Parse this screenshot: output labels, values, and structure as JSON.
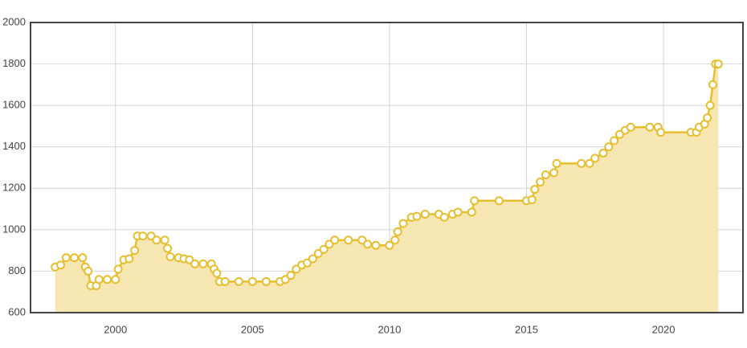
{
  "chart_data": {
    "type": "area",
    "x": [
      1997.8,
      1998.0,
      1998.2,
      1998.5,
      1998.8,
      1998.9,
      1999.0,
      1999.1,
      1999.3,
      1999.4,
      1999.7,
      2000.0,
      2000.1,
      2000.3,
      2000.5,
      2000.7,
      2000.8,
      2001.0,
      2001.3,
      2001.5,
      2001.8,
      2001.9,
      2002.0,
      2002.3,
      2002.5,
      2002.7,
      2002.9,
      2003.2,
      2003.5,
      2003.6,
      2003.7,
      2003.8,
      2004.0,
      2004.5,
      2005.0,
      2005.5,
      2006.0,
      2006.2,
      2006.4,
      2006.6,
      2006.8,
      2007.0,
      2007.2,
      2007.4,
      2007.6,
      2007.8,
      2008.0,
      2008.5,
      2009.0,
      2009.2,
      2009.5,
      2010.0,
      2010.2,
      2010.3,
      2010.5,
      2010.8,
      2011.0,
      2011.3,
      2011.8,
      2012.0,
      2012.3,
      2012.5,
      2013.0,
      2013.1,
      2014.0,
      2015.0,
      2015.2,
      2015.3,
      2015.5,
      2015.7,
      2016.0,
      2016.1,
      2017.0,
      2017.3,
      2017.5,
      2017.8,
      2018.0,
      2018.2,
      2018.4,
      2018.6,
      2018.8,
      2019.5,
      2019.8,
      2019.9,
      2021.0,
      2021.2,
      2021.3,
      2021.5,
      2021.6,
      2021.7,
      2021.8,
      2021.9,
      2022.0
    ],
    "series": [
      {
        "color": "#e6be2e",
        "fill": "#f6e6b2",
        "values": [
          820,
          830,
          865,
          865,
          865,
          820,
          800,
          730,
          730,
          760,
          760,
          760,
          810,
          855,
          860,
          900,
          970,
          970,
          970,
          950,
          950,
          910,
          870,
          865,
          860,
          855,
          835,
          835,
          835,
          810,
          790,
          750,
          750,
          750,
          750,
          750,
          750,
          760,
          780,
          810,
          830,
          840,
          860,
          885,
          905,
          930,
          950,
          950,
          950,
          930,
          925,
          925,
          950,
          990,
          1030,
          1060,
          1065,
          1075,
          1075,
          1060,
          1075,
          1085,
          1085,
          1140,
          1140,
          1140,
          1145,
          1195,
          1230,
          1265,
          1275,
          1320,
          1320,
          1320,
          1345,
          1370,
          1400,
          1430,
          1460,
          1480,
          1495,
          1495,
          1495,
          1470,
          1470,
          1470,
          1495,
          1510,
          1540,
          1600,
          1700,
          1800,
          1800
        ]
      }
    ],
    "xlim": [
      1996.9,
      2022.9
    ],
    "xticks": [
      2000,
      2005,
      2010,
      2015,
      2020
    ],
    "ylim": [
      600,
      2000
    ],
    "yticks": [
      600,
      800,
      1000,
      1200,
      1400,
      1600,
      1800,
      2000
    ],
    "grid": true
  }
}
